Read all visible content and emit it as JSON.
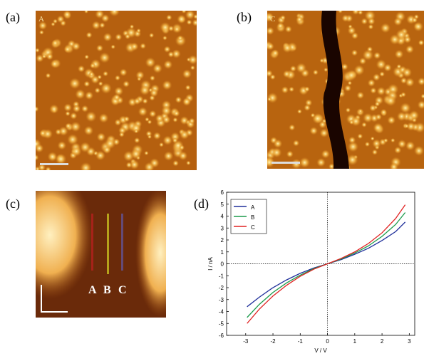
{
  "panels": [
    {
      "label": "(a)",
      "image_text": "A"
    },
    {
      "label": "(b)",
      "image_text": "C"
    },
    {
      "label": "(c)",
      "markers": [
        "A",
        "B",
        "C"
      ]
    },
    {
      "label": "(d)"
    }
  ],
  "chart_data": {
    "type": "line",
    "xlabel": "V / V",
    "ylabel": "I / nA",
    "x": [
      -2.95,
      -2.5,
      -2,
      -1.5,
      -1,
      -0.5,
      0,
      0.5,
      1,
      1.5,
      2,
      2.5,
      2.85
    ],
    "series": [
      {
        "name": "A",
        "color": "#1f2f9a",
        "values": [
          -3.6,
          -2.8,
          -2.0,
          -1.35,
          -0.8,
          -0.35,
          0,
          0.35,
          0.8,
          1.3,
          1.95,
          2.7,
          3.5
        ]
      },
      {
        "name": "B",
        "color": "#1a9a4a",
        "values": [
          -4.5,
          -3.4,
          -2.4,
          -1.6,
          -0.95,
          -0.4,
          0,
          0.4,
          0.9,
          1.5,
          2.3,
          3.3,
          4.3
        ]
      },
      {
        "name": "C",
        "color": "#e02020",
        "values": [
          -5.0,
          -3.8,
          -2.7,
          -1.8,
          -1.05,
          -0.45,
          0,
          0.45,
          1.0,
          1.7,
          2.6,
          3.8,
          4.95
        ]
      }
    ],
    "xlim": [
      -3.7,
      3.2
    ],
    "ylim": [
      -6,
      6
    ],
    "xticks": [
      -3,
      -2,
      -1,
      0,
      1,
      2,
      3
    ],
    "yticks": [
      -6,
      -5,
      -4,
      -3,
      -2,
      -1,
      0,
      1,
      2,
      3,
      4,
      5,
      6
    ],
    "legend": "top-left"
  }
}
